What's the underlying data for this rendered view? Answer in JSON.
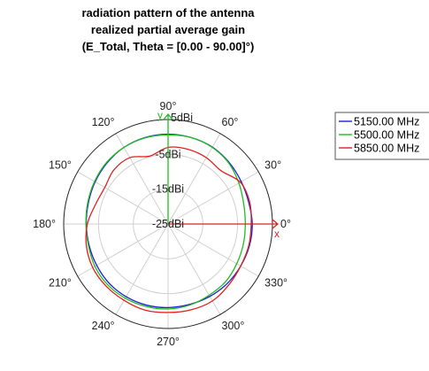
{
  "chart_data": {
    "type": "polar-line",
    "title_lines": [
      "radiation pattern of the antenna",
      "realized partial average gain",
      "(E_Total, Theta = [0.00 - 90.00]°)"
    ],
    "angle_unit": "deg",
    "angle_ticks": [
      "0°",
      "30°",
      "60°",
      "90°",
      "120°",
      "150°",
      "180°",
      "210°",
      "240°",
      "270°",
      "300°",
      "330°"
    ],
    "angle_tick_values": [
      0,
      30,
      60,
      90,
      120,
      150,
      180,
      210,
      240,
      270,
      300,
      330
    ],
    "r_unit": "dBi",
    "r_range": [
      -25,
      5
    ],
    "r_ticks": [
      -25,
      -15,
      -5,
      5
    ],
    "r_tick_labels": [
      "-25dBi",
      "-15dBi",
      "-5dBi",
      "5dBi"
    ],
    "axis_letters": {
      "x": "x",
      "y": "y"
    },
    "grid": true,
    "legend_position": "top-right",
    "colors": {
      "s1": "#1f1fd6",
      "s2": "#22bb22",
      "s3": "#e02020",
      "grid": "#d0d0d0",
      "frame": "#222222"
    },
    "angles": [
      0,
      15,
      30,
      45,
      60,
      75,
      90,
      105,
      120,
      135,
      150,
      165,
      180,
      195,
      210,
      225,
      240,
      255,
      270,
      285,
      300,
      315,
      330,
      345
    ],
    "series": [
      {
        "name": "5150.00 MHz",
        "color": "#1f1fd6",
        "values": [
          -0.8,
          -1.0,
          -0.7,
          -0.1,
          0.5,
          0.7,
          0.8,
          0.7,
          0.4,
          -0.2,
          -0.8,
          -1.3,
          -1.5,
          -1.5,
          -1.3,
          -1.0,
          -0.9,
          -0.9,
          -1.0,
          -1.1,
          -1.0,
          -0.9,
          -0.9,
          -0.8
        ]
      },
      {
        "name": "5500.00 MHz",
        "color": "#22bb22",
        "values": [
          -2.8,
          -2.5,
          -1.5,
          -0.3,
          0.4,
          0.7,
          0.6,
          0.6,
          0.4,
          0.0,
          -0.6,
          -1.1,
          -1.4,
          -1.3,
          -0.7,
          -0.4,
          -0.4,
          -0.5,
          -0.6,
          -0.9,
          -1.4,
          -1.6,
          -2.2,
          -2.6
        ]
      },
      {
        "name": "5850.00 MHz",
        "color": "#e02020",
        "values": [
          -1.1,
          -0.7,
          -1.0,
          -3.4,
          -3.0,
          -2.8,
          -3.0,
          -4.8,
          -3.0,
          -3.0,
          -4.0,
          -3.4,
          -1.8,
          -0.7,
          0.0,
          0.2,
          0.3,
          0.6,
          0.4,
          0.5,
          0.5,
          -0.3,
          -0.9,
          -1.0
        ]
      }
    ]
  }
}
